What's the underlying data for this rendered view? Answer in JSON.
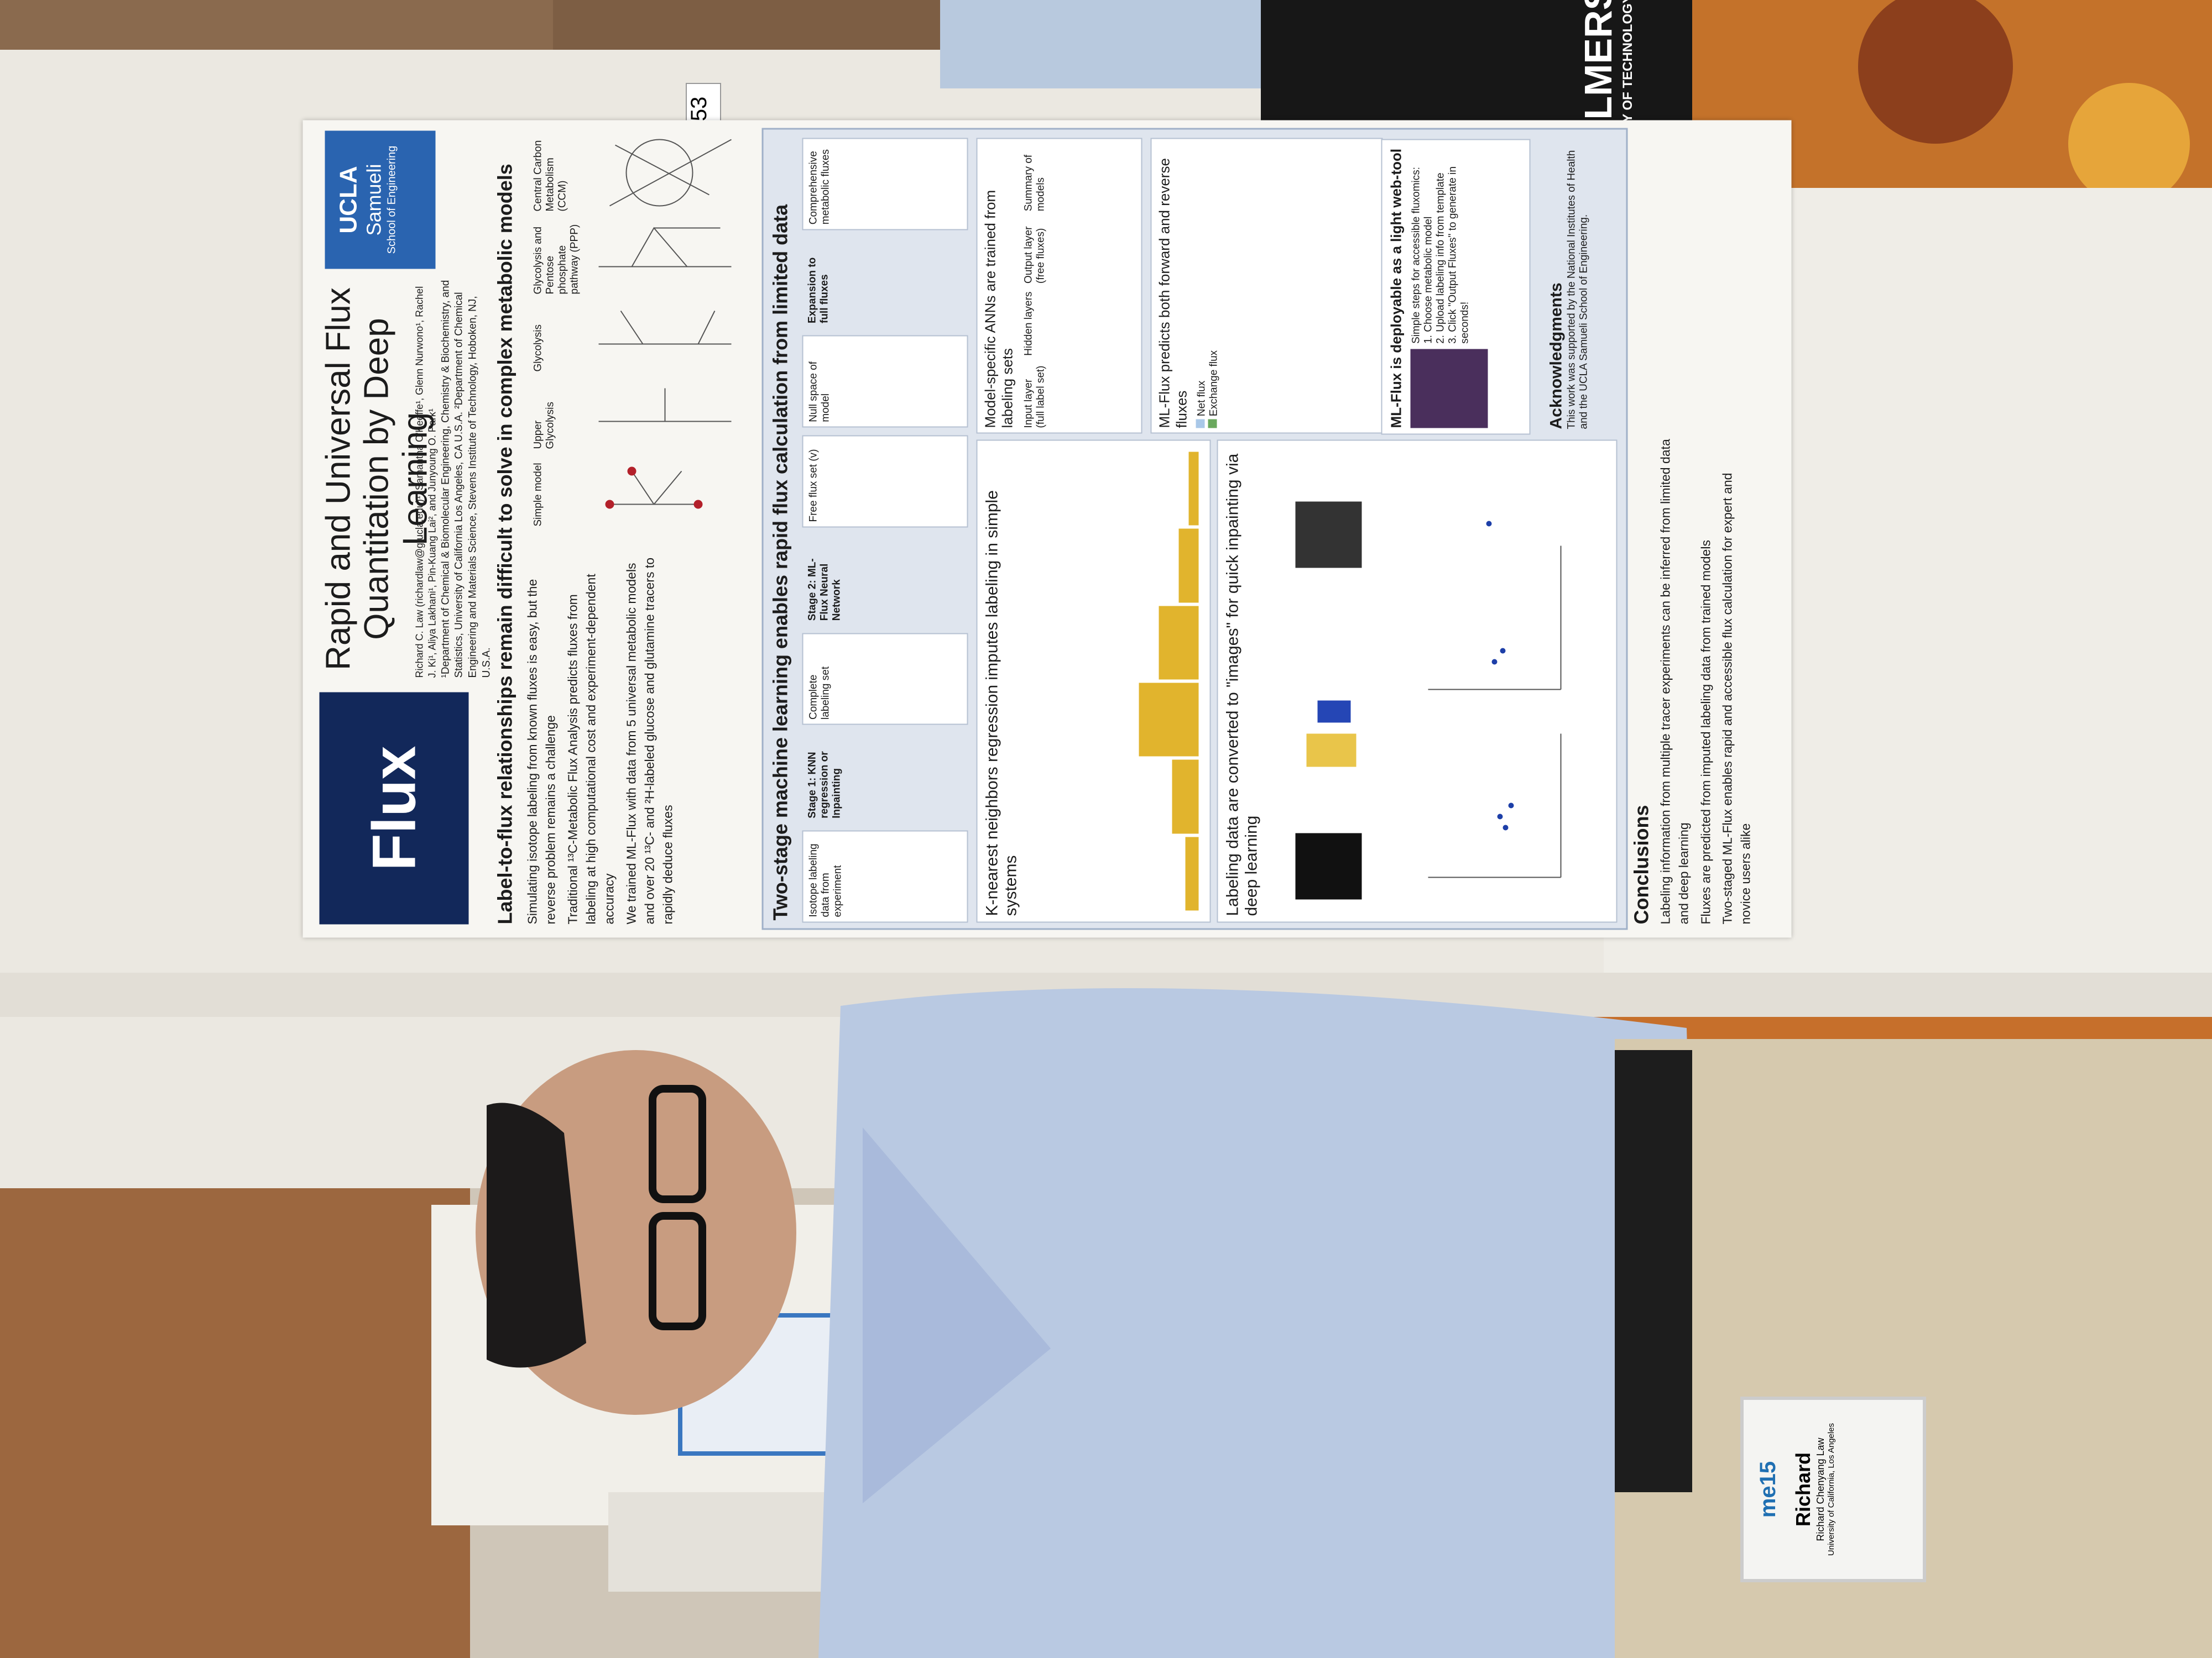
{
  "poster": {
    "number": "53",
    "logo": "Flux",
    "title": "Rapid and Universal Flux Quantitation by Deep Learning",
    "authors": "Richard C. Law (richardlaw@g.ucla.edu)¹, Samantha O'Keeffe¹, Glenn Nurwono¹, Rachel J. Ki¹, Aliya Lakhani¹, Pin-Kuang Lai², and Junyoung O. Park¹",
    "affiliations": "¹Department of Chemical & Biomolecular Engineering, Chemistry & Biochemistry, and Statistics, University of California Los Angeles, CA U.S.A. ²Department of Chemical Engineering and Materials Science, Stevens Institute of Technology, Hoboken, NJ, U.S.A.",
    "institution": {
      "name": "UCLA",
      "school": "Samueli",
      "subtitle": "School of Engineering"
    },
    "intro": {
      "heading": "Label-to-flux relationships remain difficult to solve in complex metabolic models",
      "bullets": [
        "Simulating isotope labeling from known fluxes is easy, but the reverse problem remains a challenge",
        "Traditional ¹³C-Metabolic Flux Analysis predicts fluxes from labeling at high computational cost and experiment-dependent accuracy",
        "We trained ML-Flux with data from 5 universal metabolic models and over 20 ¹³C- and ²H-labeled glucose and glutamine tracers to rapidly deduce fluxes"
      ],
      "models": [
        "Simple model",
        "Upper Glycolysis",
        "Glycolysis",
        "Glycolysis and Pentose phosphate pathway (PPP)",
        "Central Carbon Metabolism (CCM)"
      ]
    },
    "method": {
      "heading": "Two-stage machine learning enables rapid flux calculation from limited data",
      "flow": [
        "Isotope labeling data from experiment",
        "Stage 1: KNN regression or Inpainting",
        "Complete labeling set",
        "Stage 2: ML-Flux Neural Network",
        "Free flux set (v)",
        "Null space of model",
        "Expansion to full fluxes",
        "Comprehensive metabolic fluxes"
      ],
      "knn": "K-nearest neighbors regression imputes labeling in simple systems",
      "inpainting": "Labeling data are converted to \"images\" for quick inpainting via deep learning",
      "ann": {
        "heading": "Model-specific ANNs are trained from labeling sets",
        "labels": [
          "Input layer (full label set)",
          "Hidden layers",
          "Output layer (free fluxes)",
          "Summary of models"
        ]
      },
      "fluxes": {
        "heading": "ML-Flux predicts both forward and reverse fluxes",
        "labels": [
          "Net flux",
          "Exchange flux"
        ]
      }
    },
    "webtool": {
      "heading": "ML-Flux is deployable as a light web-tool",
      "steps": [
        "Simple steps for accessible fluxomics:",
        "1. Choose metabolic model",
        "2. Upload labeling info from template",
        "3. Click \"Output Fluxes\" to generate in seconds!"
      ]
    },
    "acknowledgments": {
      "heading": "Acknowledgments",
      "text": "This work was supported by the National Institutes of Health and the UCLA Samueli School of Engineering."
    },
    "conclusions": {
      "heading": "Conclusions",
      "bullets": [
        "Labeling information from multiple tracer experiments can be inferred from limited data and deep learning",
        "Fluxes are predicted from imputed labeling data from trained models",
        "Two-staged ML-Flux enables rapid and accessible flux calculation for expert and novice users alike"
      ]
    }
  },
  "badge": {
    "logo": "me15",
    "first_name": "Richard",
    "full_name": "Richard Chenyang Law",
    "affiliation": "University of California, Los Angeles"
  },
  "shirt": {
    "brand": "CHALMERS",
    "subtitle": "UNIVERSITY OF TECHNOLOGY"
  }
}
